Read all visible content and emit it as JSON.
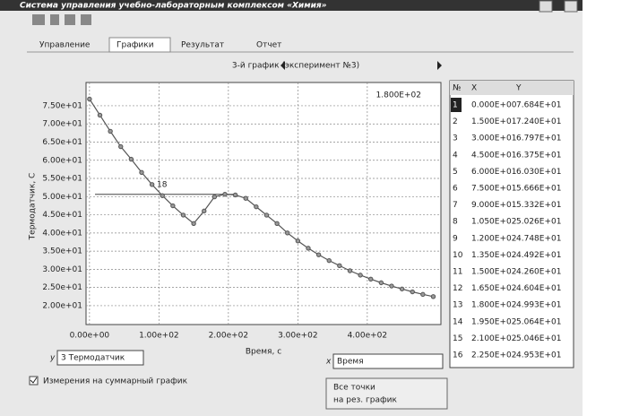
{
  "window": {
    "title": "Система управления учебно-лабораторным комплексом «Химия»",
    "tabs": [
      "Управление",
      "Графики",
      "Результат",
      "Отчет"
    ],
    "nav": "3-й график (эксперимент №3)",
    "y_label": "y",
    "y_select": "3 Термодатчик",
    "x_label": "x",
    "x_select": "Время",
    "checkbox": "Измерения на суммарный график",
    "button": [
      "Все точки",
      "на рез. график"
    ]
  },
  "table": {
    "headers": [
      "№",
      "X",
      "Y"
    ],
    "rows": [
      [
        "1",
        "0.000E+00",
        "7.684E+01"
      ],
      [
        "2",
        "1.500E+01",
        "7.240E+01"
      ],
      [
        "3",
        "3.000E+01",
        "6.797E+01"
      ],
      [
        "4",
        "4.500E+01",
        "6.375E+01"
      ],
      [
        "5",
        "6.000E+01",
        "6.030E+01"
      ],
      [
        "6",
        "7.500E+01",
        "5.666E+01"
      ],
      [
        "7",
        "9.000E+01",
        "5.332E+01"
      ],
      [
        "8",
        "1.050E+02",
        "5.026E+01"
      ],
      [
        "9",
        "1.200E+02",
        "4.748E+01"
      ],
      [
        "10",
        "1.350E+02",
        "4.492E+01"
      ],
      [
        "11",
        "1.500E+02",
        "4.260E+01"
      ],
      [
        "12",
        "1.650E+02",
        "4.604E+01"
      ],
      [
        "13",
        "1.800E+02",
        "4.993E+01"
      ],
      [
        "14",
        "1.950E+02",
        "5.064E+01"
      ],
      [
        "15",
        "2.100E+02",
        "5.046E+01"
      ],
      [
        "16",
        "2.250E+02",
        "4.953E+01"
      ]
    ]
  },
  "chart_data": {
    "type": "line",
    "x_label": "Время, с",
    "y_label": "Термодатчик, С",
    "annotations": [
      "1.800E+02",
      "18"
    ],
    "x": [
      0,
      15,
      30,
      45,
      60,
      75,
      90,
      105,
      120,
      135,
      150,
      165,
      180,
      195,
      210,
      225,
      240,
      255,
      270,
      285,
      300,
      315,
      330,
      345,
      360,
      375,
      390,
      405,
      420,
      435,
      450,
      465,
      480,
      495
    ],
    "values": [
      76.84,
      72.4,
      67.97,
      63.75,
      60.3,
      56.66,
      53.32,
      50.26,
      47.48,
      44.92,
      42.6,
      46.04,
      49.93,
      50.64,
      50.46,
      49.53,
      47.2,
      44.9,
      42.6,
      40.0,
      37.8,
      35.8,
      34.0,
      32.4,
      31.0,
      29.6,
      28.4,
      27.3,
      26.3,
      25.4,
      24.6,
      23.8,
      23.1,
      22.5
    ],
    "color": "#555555",
    "xlim": [
      -5,
      506
    ],
    "ylim": [
      14.8,
      81.4
    ],
    "xticks": [
      {
        "value": 0,
        "label": "0.00e+00"
      },
      {
        "value": 100,
        "label": "1.00e+02"
      },
      {
        "value": 200,
        "label": "2.00e+02"
      },
      {
        "value": 300,
        "label": "3.00e+02"
      },
      {
        "value": 400,
        "label": "4.00e+02"
      }
    ],
    "yticks": [
      {
        "value": 20,
        "label": "2.00e+01"
      },
      {
        "value": 25,
        "label": "2.50e+01"
      },
      {
        "value": 30,
        "label": "3.00e+01"
      },
      {
        "value": 35,
        "label": "3.50e+01"
      },
      {
        "value": 40,
        "label": "4.00e+01"
      },
      {
        "value": 45,
        "label": "4.50e+01"
      },
      {
        "value": 50,
        "label": "5.00e+01"
      },
      {
        "value": 55,
        "label": "5.50e+01"
      },
      {
        "value": 60,
        "label": "6.00e+01"
      },
      {
        "value": 65,
        "label": "6.50e+01"
      },
      {
        "value": 70,
        "label": "7.00e+01"
      },
      {
        "value": 75,
        "label": "7.50e+01"
      }
    ],
    "grid": true
  }
}
